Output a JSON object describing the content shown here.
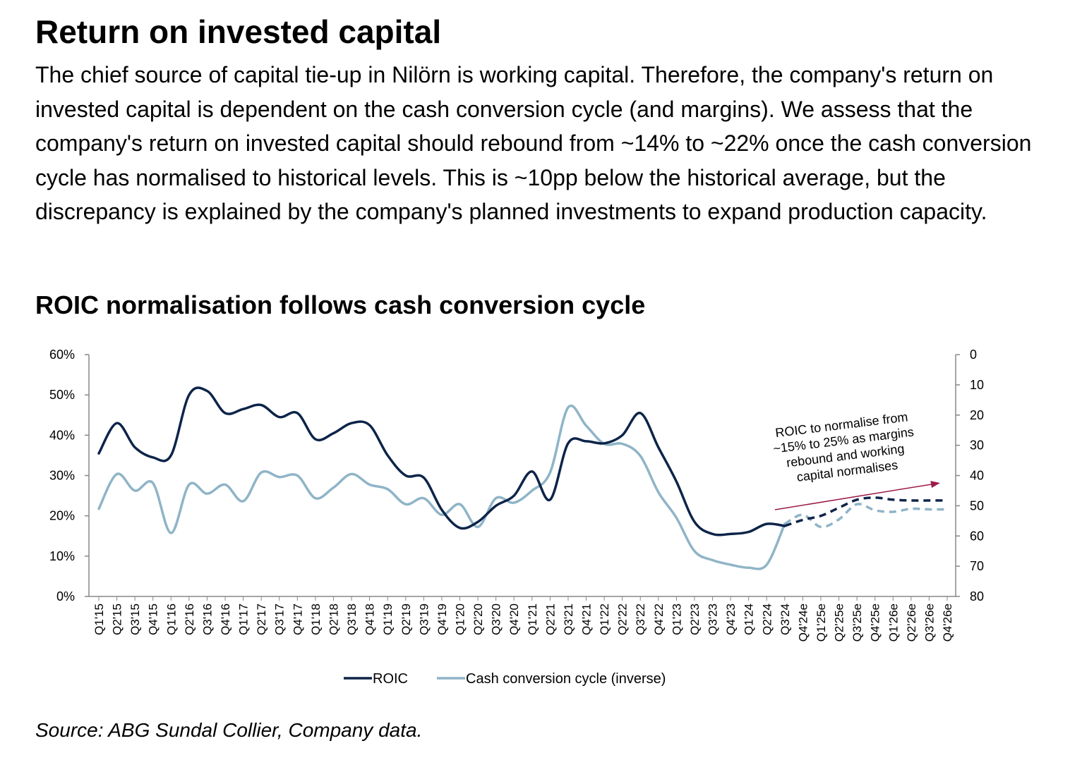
{
  "page": {
    "title": "Return on invested capital",
    "paragraph": "The chief source of capital tie-up in Nilörn is working capital. Therefore, the company's return on invested capital is dependent on the cash conversion cycle (and margins). We assess that the company's return on invested capital should rebound from ~14% to ~22% once the cash conversion cycle has normalised to historical levels. This is ~10pp below the historical average, but the discrepancy is explained by the company's planned investments to expand production capacity.",
    "source": "Source: ABG Sundal Collier, Company data."
  },
  "chart_data": {
    "type": "line",
    "title": "ROIC normalisation follows cash conversion cycle",
    "categories": [
      "Q1'15",
      "Q2'15",
      "Q3'15",
      "Q4'15",
      "Q1'16",
      "Q2'16",
      "Q3'16",
      "Q4'16",
      "Q1'17",
      "Q2'17",
      "Q3'17",
      "Q4'17",
      "Q1'18",
      "Q2'18",
      "Q3'18",
      "Q4'18",
      "Q1'19",
      "Q2'19",
      "Q3'19",
      "Q4'19",
      "Q1'20",
      "Q2'20",
      "Q3'20",
      "Q4'20",
      "Q1'21",
      "Q2'21",
      "Q3'21",
      "Q4'21",
      "Q1'22",
      "Q2'22",
      "Q3'22",
      "Q4'22",
      "Q1'23",
      "Q2'23",
      "Q3'23",
      "Q4'23",
      "Q1'24",
      "Q2'24",
      "Q3'24",
      "Q4'24e",
      "Q1'25e",
      "Q2'25e",
      "Q3'25e",
      "Q4'25e",
      "Q1'26e",
      "Q2'26e",
      "Q3'26e",
      "Q4'26e"
    ],
    "forecast_start_index": 38,
    "y_left": {
      "ticks": [
        "0%",
        "10%",
        "20%",
        "30%",
        "40%",
        "50%",
        "60%"
      ],
      "ylim": [
        0,
        60
      ]
    },
    "y_right": {
      "ticks": [
        "0",
        "10",
        "20",
        "30",
        "40",
        "50",
        "60",
        "70",
        "80"
      ],
      "ylim": [
        0,
        80
      ],
      "inverted": true
    },
    "series": [
      {
        "name": "ROIC",
        "axis": "left",
        "color": "#0d2449",
        "values": [
          35.5,
          43,
          37,
          34.5,
          35,
          50,
          51,
          45.5,
          46.5,
          47.5,
          44.5,
          45.5,
          39,
          40.5,
          43,
          42.5,
          35,
          30,
          29.5,
          21.5,
          17,
          18.5,
          22.5,
          25,
          31,
          24,
          38,
          38.5,
          38,
          40,
          45.5,
          37,
          28.5,
          18.5,
          15.5,
          15.5,
          16,
          18,
          17.5,
          19,
          20,
          22,
          24,
          24.5,
          24,
          23.8,
          23.8,
          23.8
        ]
      },
      {
        "name": "Cash conversion cycle (inverse)",
        "axis": "right",
        "color": "#8fb4c7",
        "values": [
          51,
          39.5,
          45,
          42.5,
          59,
          43,
          46,
          43,
          48.5,
          39,
          40.5,
          40,
          47.5,
          44,
          39.5,
          43,
          44.5,
          49.5,
          47.5,
          53,
          49.5,
          57,
          47.5,
          49,
          45,
          39,
          17.5,
          23.5,
          29.5,
          29.5,
          33.5,
          45.5,
          54,
          65,
          68,
          69.5,
          70.5,
          69.5,
          56,
          53,
          57,
          54.5,
          49.5,
          51.5,
          52,
          51,
          51.2,
          51.2
        ]
      }
    ],
    "legend": {
      "position": "bottom",
      "items": [
        "ROIC",
        "Cash conversion cycle (inverse)"
      ]
    },
    "annotation": {
      "lines": [
        "ROIC to normalise from",
        "~15% to 25% as margins",
        "rebound and working",
        "capital normalises"
      ],
      "arrow_color": "#9b1b4a"
    },
    "grid": false
  }
}
